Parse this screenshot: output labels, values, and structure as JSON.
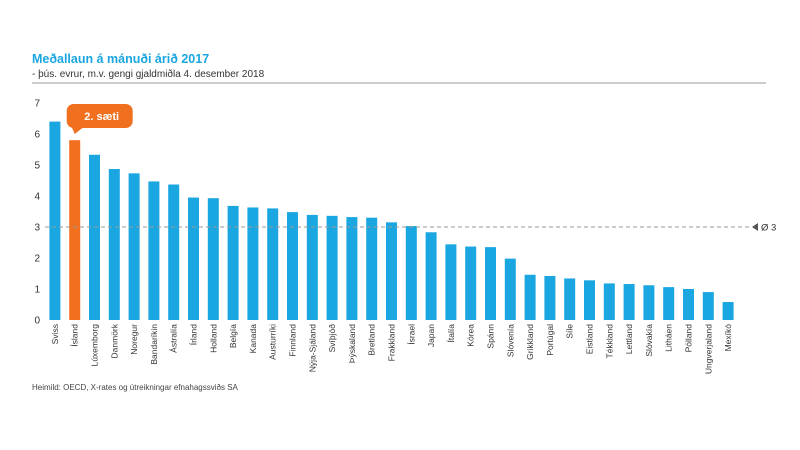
{
  "chart_data": {
    "type": "bar",
    "title": "Meðallaun á mánuði árið 2017",
    "subtitle": "- þús. evrur, m.v. gengi gjaldmiðla 4. desember 2018",
    "source": "Heimild: OECD, X-rates og útreikningar efnahagssviðs SA",
    "ylim": [
      0,
      7
    ],
    "yticks": [
      0,
      1,
      2,
      3,
      4,
      5,
      6,
      7
    ],
    "grid": false,
    "categories": [
      "Sviss",
      "Ísland",
      "Lúxemborg",
      "Danmörk",
      "Noregur",
      "Bandaríkin",
      "Ástralía",
      "Írland",
      "Holland",
      "Belgía",
      "Kanada",
      "Austurríki",
      "Finnland",
      "Nýja-Sjáland",
      "Svíþjóð",
      "Þýskaland",
      "Bretland",
      "Frakkland",
      "Ísrael",
      "Japan",
      "Ítalía",
      "Kórea",
      "Spánn",
      "Slóvenía",
      "Grikkland",
      "Portúgal",
      "Síle",
      "Eistland",
      "Tékkland",
      "Lettland",
      "Slóvakía",
      "Litháen",
      "Pólland",
      "Ungverjaland",
      "Mexíkó"
    ],
    "values": [
      6.4,
      5.8,
      5.33,
      4.87,
      4.73,
      4.47,
      4.37,
      3.95,
      3.93,
      3.68,
      3.63,
      3.6,
      3.48,
      3.39,
      3.36,
      3.32,
      3.3,
      3.15,
      3.03,
      2.83,
      2.44,
      2.37,
      2.35,
      1.98,
      1.46,
      1.42,
      1.34,
      1.28,
      1.18,
      1.16,
      1.12,
      1.06,
      1.0,
      0.9,
      0.58
    ],
    "average": {
      "value": 3,
      "label": "Ø 3"
    },
    "highlight": {
      "category": "Ísland",
      "label": "2. sæti",
      "color": "#F07020"
    },
    "colors": {
      "bar": "#1AA6E0",
      "highlight": "#F07020",
      "average_line": "#999999",
      "average_marker": "#555555"
    }
  }
}
